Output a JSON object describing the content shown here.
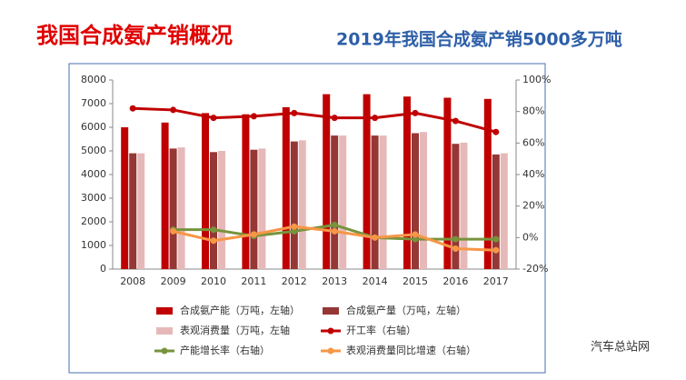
{
  "title": "我国合成氨产销概况",
  "subtitle": "2019年我国合成氨产销5000多万吨",
  "watermark": "汽车总站网",
  "chart_data": {
    "type": "bar",
    "categories": [
      "2008",
      "2009",
      "2010",
      "2011",
      "2012",
      "2013",
      "2014",
      "2015",
      "2016",
      "2017"
    ],
    "ylim": [
      0,
      8000
    ],
    "yticks": [
      0,
      1000,
      2000,
      3000,
      4000,
      5000,
      6000,
      7000,
      8000
    ],
    "y2lim": [
      -20,
      100
    ],
    "y2ticks": [
      {
        "value": -20,
        "label": "-20%"
      },
      {
        "value": 0,
        "label": "0%"
      },
      {
        "value": 20,
        "label": "20%"
      },
      {
        "value": 40,
        "label": "40%"
      },
      {
        "value": 60,
        "label": "60%"
      },
      {
        "value": 80,
        "label": "80%"
      },
      {
        "value": 100,
        "label": "100%"
      }
    ],
    "series": [
      {
        "name": "合成氨产能（万吨，左轴）",
        "type": "bar",
        "color": "#c00000",
        "values": [
          6000,
          6200,
          6600,
          6550,
          6850,
          7400,
          7400,
          7300,
          7250,
          7200
        ]
      },
      {
        "name": "合成氨产量（万吨，左轴）",
        "type": "bar",
        "color": "#953735",
        "values": [
          4900,
          5100,
          4950,
          5050,
          5400,
          5650,
          5650,
          5750,
          5300,
          4850
        ]
      },
      {
        "name": "表观消费量（万吨，左轴",
        "type": "bar",
        "color": "#e6b9b8",
        "values": [
          4900,
          5150,
          5000,
          5100,
          5450,
          5650,
          5650,
          5800,
          5350,
          4900
        ]
      },
      {
        "name": "开工率（右轴）",
        "type": "line",
        "axis": "y2",
        "color": "#c00000",
        "values": [
          82,
          81,
          76,
          77,
          79,
          76,
          76,
          79,
          74,
          67
        ]
      },
      {
        "name": "产能增长率（右轴）",
        "type": "line",
        "axis": "y2",
        "color": "#77933c",
        "values": [
          null,
          5,
          5,
          1,
          4,
          8,
          0,
          -1,
          -1,
          -1
        ]
      },
      {
        "name": "表观消费量同比增速（右轴）",
        "type": "line",
        "axis": "y2",
        "color": "#f79646",
        "values": [
          null,
          4,
          -2,
          2,
          7,
          4,
          0,
          2,
          -7,
          -8
        ]
      }
    ]
  }
}
